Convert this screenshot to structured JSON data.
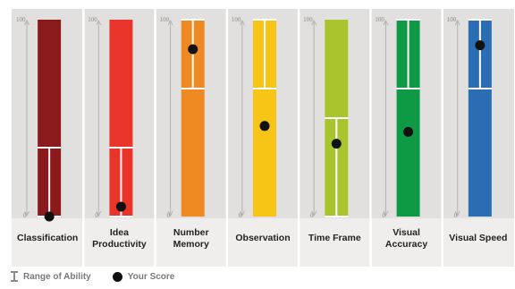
{
  "chart_data": {
    "type": "bar",
    "categories": [
      "Classification",
      "Idea Productivity",
      "Number Memory",
      "Observation",
      "Time Frame",
      "Visual Accuracy",
      "Visual Speed"
    ],
    "category_lines": [
      [
        "Classification"
      ],
      [
        "Idea",
        "Productivity"
      ],
      [
        "Number",
        "Memory"
      ],
      [
        "Observation"
      ],
      [
        "Time Frame"
      ],
      [
        "Visual",
        "Accuracy"
      ],
      [
        "Visual Speed"
      ]
    ],
    "ylim": [
      0,
      100
    ],
    "tick_labels": {
      "top": "100",
      "bottom": "0"
    },
    "range_of_ability": [
      {
        "low": 0,
        "high": 35
      },
      {
        "low": 0,
        "high": 35
      },
      {
        "low": 65,
        "high": 100
      },
      {
        "low": 65,
        "high": 100
      },
      {
        "low": 0,
        "high": 50
      },
      {
        "low": 65,
        "high": 100
      },
      {
        "low": 65,
        "high": 100
      }
    ],
    "your_score": [
      0,
      5,
      85,
      46,
      37,
      43,
      87
    ],
    "colors": [
      "#8b1a1c",
      "#e8342a",
      "#ef8a22",
      "#f6c515",
      "#a9c52d",
      "#0e9a45",
      "#2a6db3"
    ],
    "legend": [
      "Range of Ability",
      "Your Score"
    ]
  }
}
